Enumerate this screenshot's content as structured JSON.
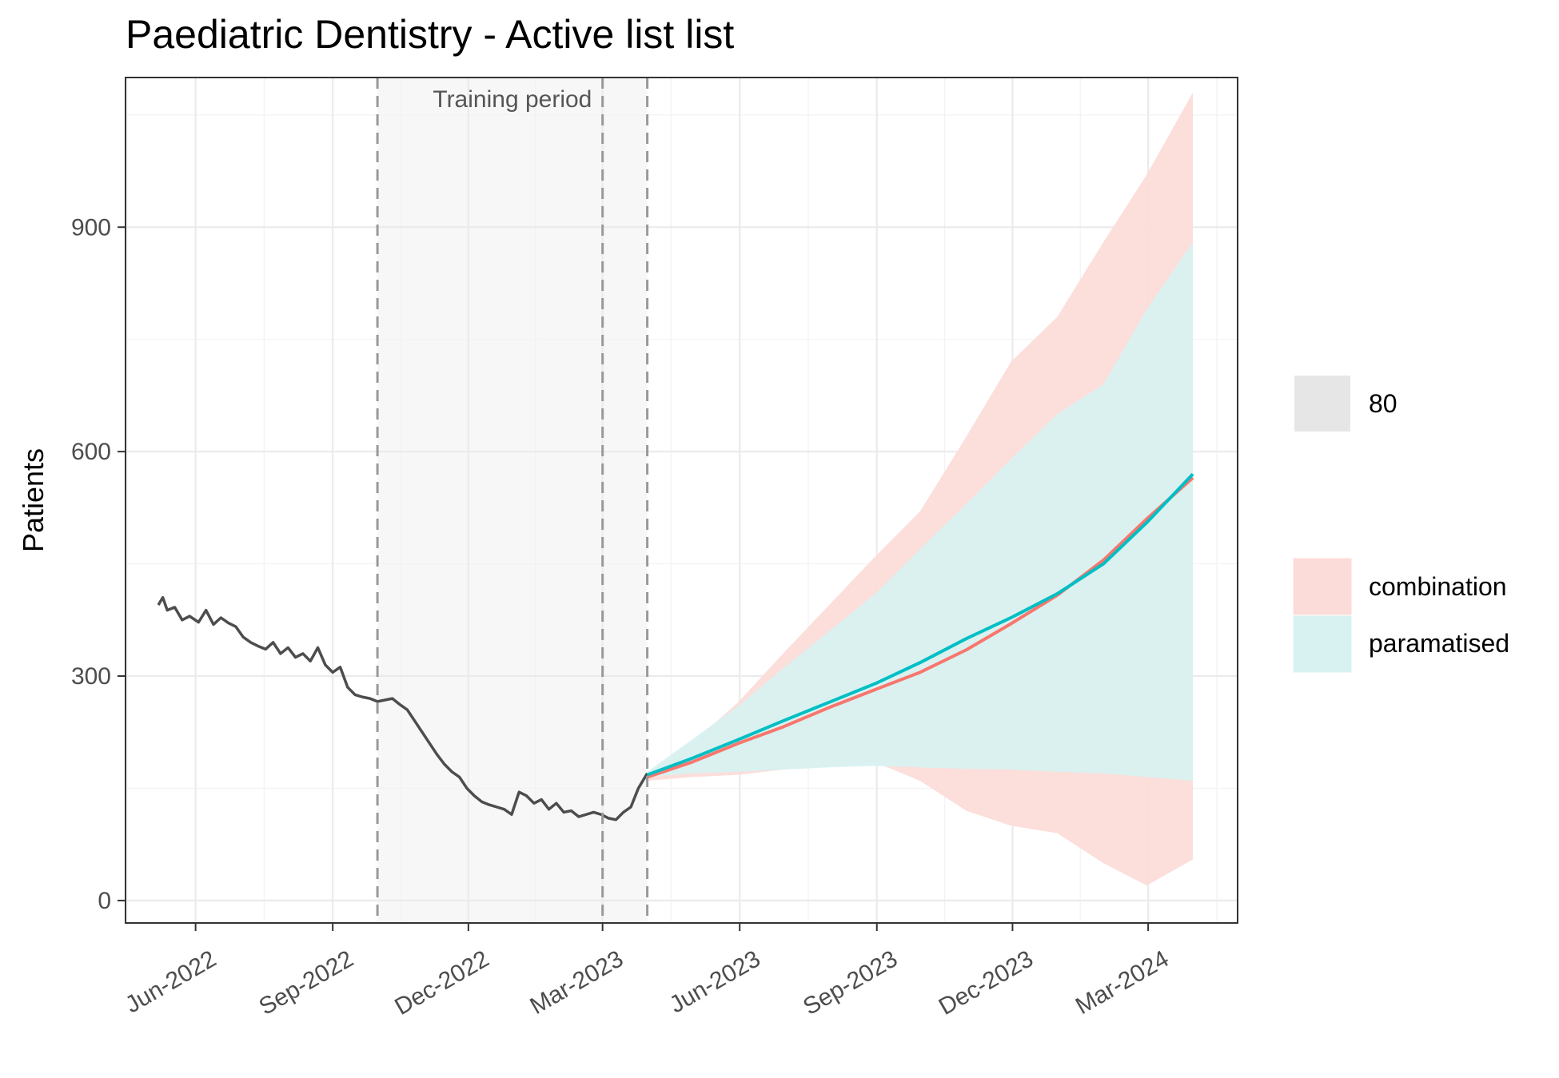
{
  "chart_data": {
    "type": "line",
    "title": "Paediatric Dentistry - Active list list",
    "xlabel": "",
    "ylabel": "Patients",
    "ylim": [
      -30,
      1100
    ],
    "xlim": [
      "2022-04-15",
      "2024-04-30"
    ],
    "y_ticks": [
      0,
      300,
      600,
      900
    ],
    "x_ticks": [
      {
        "date": "2022-06-01",
        "label": "Jun-2022"
      },
      {
        "date": "2022-09-01",
        "label": "Sep-2022"
      },
      {
        "date": "2022-12-01",
        "label": "Dec-2022"
      },
      {
        "date": "2023-03-01",
        "label": "Mar-2023"
      },
      {
        "date": "2023-06-01",
        "label": "Jun-2023"
      },
      {
        "date": "2023-09-01",
        "label": "Sep-2023"
      },
      {
        "date": "2023-12-01",
        "label": "Dec-2023"
      },
      {
        "date": "2024-03-01",
        "label": "Mar-2024"
      }
    ],
    "grid": true,
    "legend_position": "right",
    "training_period": {
      "label": "Training period",
      "start": "2022-10-01",
      "end": "2023-03-31",
      "marker_date": "2023-03-01"
    },
    "interval_legend": {
      "label": "80",
      "color": "#e6e6e6"
    },
    "actual": {
      "color": "#4d4d4d",
      "x": [
        "2022-05-07",
        "2022-05-10",
        "2022-05-13",
        "2022-05-18",
        "2022-05-23",
        "2022-05-28",
        "2022-06-03",
        "2022-06-08",
        "2022-06-13",
        "2022-06-18",
        "2022-06-23",
        "2022-06-28",
        "2022-07-03",
        "2022-07-08",
        "2022-07-13",
        "2022-07-18",
        "2022-07-23",
        "2022-07-28",
        "2022-08-02",
        "2022-08-07",
        "2022-08-12",
        "2022-08-17",
        "2022-08-22",
        "2022-08-27",
        "2022-09-01",
        "2022-09-06",
        "2022-09-11",
        "2022-09-16",
        "2022-09-21",
        "2022-09-26",
        "2022-10-01",
        "2022-10-06",
        "2022-10-11",
        "2022-10-16",
        "2022-10-21",
        "2022-10-26",
        "2022-10-31",
        "2022-11-05",
        "2022-11-10",
        "2022-11-15",
        "2022-11-20",
        "2022-11-25",
        "2022-11-30",
        "2022-12-05",
        "2022-12-10",
        "2022-12-15",
        "2022-12-20",
        "2022-12-25",
        "2022-12-30",
        "2023-01-04",
        "2023-01-09",
        "2023-01-14",
        "2023-01-19",
        "2023-01-24",
        "2023-01-29",
        "2023-02-03",
        "2023-02-08",
        "2023-02-13",
        "2023-02-18",
        "2023-02-23",
        "2023-02-28",
        "2023-03-05",
        "2023-03-10",
        "2023-03-15",
        "2023-03-20",
        "2023-03-25",
        "2023-03-31"
      ],
      "y": [
        395,
        405,
        388,
        392,
        375,
        380,
        372,
        388,
        369,
        378,
        371,
        366,
        352,
        345,
        340,
        336,
        345,
        330,
        338,
        325,
        330,
        320,
        338,
        315,
        305,
        312,
        285,
        275,
        272,
        270,
        266,
        268,
        270,
        262,
        255,
        240,
        225,
        210,
        195,
        182,
        172,
        165,
        150,
        140,
        132,
        128,
        125,
        122,
        115,
        145,
        140,
        130,
        135,
        122,
        130,
        118,
        120,
        112,
        115,
        118,
        115,
        110,
        108,
        118,
        125,
        150,
        170
      ]
    },
    "series": [
      {
        "name": "combination",
        "color": "#f8766d",
        "fill": "#fcdcd9",
        "x": [
          "2023-03-31",
          "2023-04-30",
          "2023-05-31",
          "2023-06-30",
          "2023-07-31",
          "2023-08-31",
          "2023-09-30",
          "2023-10-31",
          "2023-11-30",
          "2023-12-31",
          "2024-01-31",
          "2024-02-29",
          "2024-03-31"
        ],
        "values": [
          165,
          185,
          210,
          232,
          258,
          282,
          305,
          335,
          370,
          408,
          455,
          510,
          565
        ],
        "upper": [
          170,
          210,
          265,
          330,
          395,
          460,
          520,
          620,
          720,
          780,
          880,
          970,
          1080
        ],
        "lower": [
          160,
          165,
          168,
          175,
          180,
          185,
          160,
          120,
          100,
          90,
          50,
          20,
          55
        ]
      },
      {
        "name": "paramatised",
        "color": "#00bfc4",
        "fill": "#d8f1f1",
        "x": [
          "2023-03-31",
          "2023-04-30",
          "2023-05-31",
          "2023-06-30",
          "2023-07-31",
          "2023-08-31",
          "2023-09-30",
          "2023-10-31",
          "2023-11-30",
          "2023-12-31",
          "2024-01-31",
          "2024-02-29",
          "2024-03-31"
        ],
        "values": [
          168,
          190,
          215,
          240,
          265,
          290,
          318,
          350,
          378,
          410,
          450,
          505,
          570
        ],
        "upper": [
          172,
          215,
          260,
          310,
          360,
          410,
          470,
          530,
          590,
          650,
          690,
          790,
          880
        ],
        "lower": [
          165,
          170,
          172,
          175,
          178,
          180,
          178,
          176,
          175,
          172,
          170,
          165,
          160
        ]
      }
    ]
  }
}
